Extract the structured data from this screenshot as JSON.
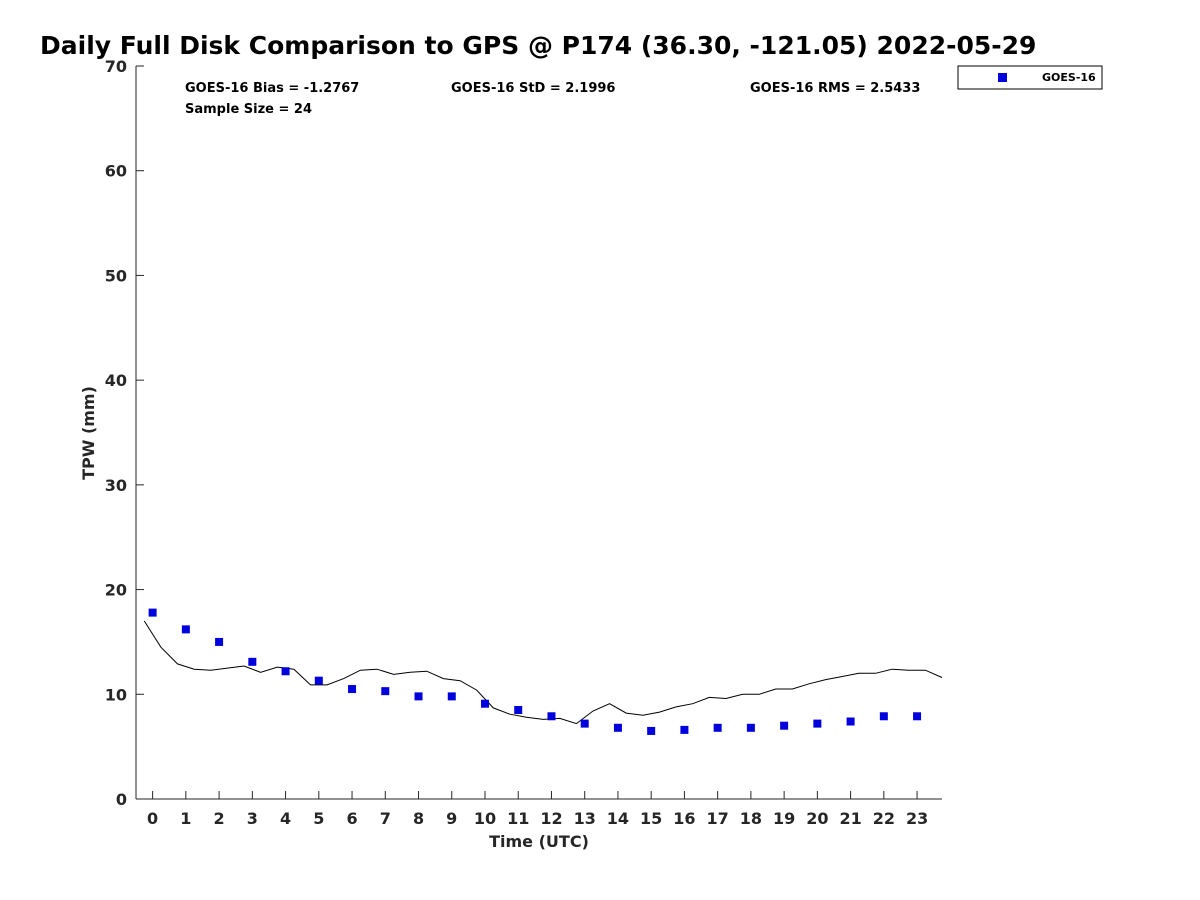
{
  "chart_data": {
    "type": "scatter",
    "title": "Daily Full Disk Comparison to GPS @ P174 (36.30, -121.05) 2022-05-29",
    "xlabel": "Time (UTC)",
    "ylabel": "TPW (mm)",
    "xlim": [
      -0.5,
      23.75
    ],
    "ylim": [
      0,
      70
    ],
    "xticks": [
      0,
      1,
      2,
      3,
      4,
      5,
      6,
      7,
      8,
      9,
      10,
      11,
      12,
      13,
      14,
      15,
      16,
      17,
      18,
      19,
      20,
      21,
      22,
      23
    ],
    "yticks": [
      0,
      10,
      20,
      30,
      40,
      50,
      60,
      70
    ],
    "grid": false,
    "legend_position": "outside top-right",
    "stats": {
      "bias": "GOES-16 Bias = -1.2767",
      "std": "GOES-16 StD = 2.1996",
      "rms": "GOES-16 RMS = 2.5433",
      "sample": "Sample Size = 24"
    },
    "series": [
      {
        "name": "GOES-16",
        "kind": "scatter",
        "marker": "square",
        "color": "#0000dd",
        "x": [
          0,
          1,
          2,
          3,
          4,
          5,
          6,
          7,
          8,
          9,
          10,
          11,
          12,
          13,
          14,
          15,
          16,
          17,
          18,
          19,
          20,
          21,
          22,
          23
        ],
        "y": [
          17.8,
          16.2,
          15.0,
          13.1,
          12.2,
          11.3,
          10.5,
          10.3,
          9.8,
          9.8,
          9.1,
          8.5,
          7.9,
          7.2,
          6.8,
          6.5,
          6.6,
          6.8,
          6.8,
          7.0,
          7.2,
          7.4,
          7.9,
          7.9
        ]
      },
      {
        "kind": "line",
        "color": "#000000",
        "x": [
          -0.25,
          0.25,
          0.75,
          1.25,
          1.75,
          2.25,
          2.75,
          3.25,
          3.75,
          4.25,
          4.75,
          5.25,
          5.75,
          6.25,
          6.75,
          7.25,
          7.75,
          8.25,
          8.75,
          9.25,
          9.75,
          10.25,
          10.75,
          11.25,
          11.75,
          12.25,
          12.75,
          13.25,
          13.75,
          14.25,
          14.75,
          15.25,
          15.75,
          16.25,
          16.75,
          17.25,
          17.75,
          18.25,
          18.75,
          19.25,
          19.75,
          20.25,
          20.75,
          21.25,
          21.75,
          22.25,
          22.75,
          23.25,
          23.75
        ],
        "y": [
          17.0,
          14.5,
          12.9,
          12.4,
          12.3,
          12.5,
          12.7,
          12.1,
          12.6,
          12.4,
          10.9,
          10.9,
          11.5,
          12.3,
          12.4,
          11.9,
          12.1,
          12.2,
          11.5,
          11.3,
          10.4,
          8.7,
          8.1,
          7.8,
          7.6,
          7.7,
          7.2,
          8.4,
          9.1,
          8.2,
          8.0,
          8.3,
          8.8,
          9.1,
          9.7,
          9.6,
          10.0,
          10.0,
          10.5,
          10.5,
          11.0,
          11.4,
          11.7,
          12.0,
          12.0,
          12.4,
          12.3,
          12.3,
          11.6
        ]
      }
    ]
  }
}
